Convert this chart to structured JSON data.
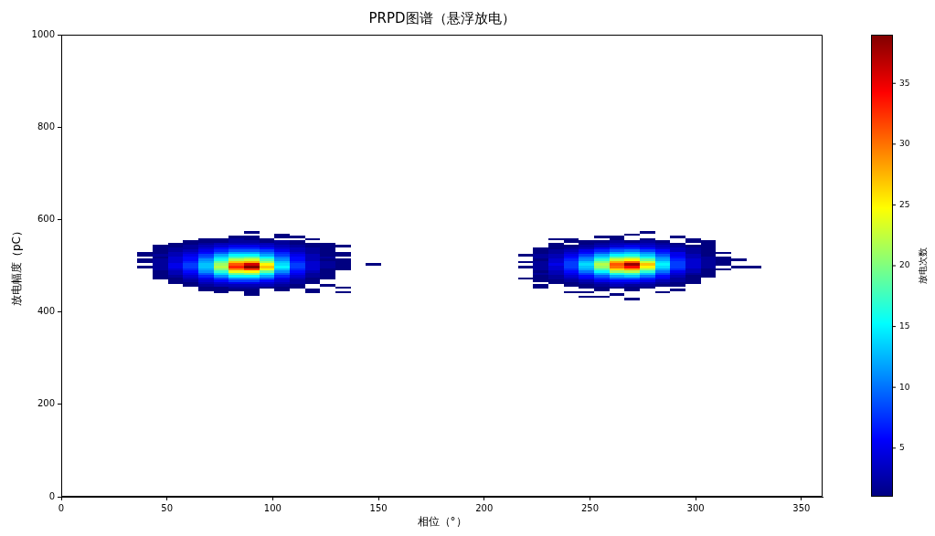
{
  "chart_data": {
    "type": "heatmap",
    "title": "PRPD图谱（悬浮放电）",
    "xlabel": "相位（°）",
    "ylabel": "放电幅度（pC）",
    "clabel": "放电次数",
    "xlim": [
      0,
      360
    ],
    "xticks": [
      0,
      50,
      100,
      150,
      200,
      250,
      300,
      350
    ],
    "ylim": [
      0,
      1000
    ],
    "yticks": [
      0,
      200,
      400,
      600,
      800,
      1000
    ],
    "clim": [
      1,
      39
    ],
    "cticks": [
      5,
      10,
      15,
      20,
      25,
      30,
      35
    ],
    "grid": false,
    "x": [
      39.6,
      46.8,
      54,
      61.2,
      68.4,
      75.6,
      82.8,
      90,
      97.2,
      104.4,
      111.6,
      118.8,
      126,
      133.2,
      140.4,
      147.6,
      154.8,
      162,
      169.2,
      176.4,
      183.6,
      190.8,
      198,
      205.2,
      212.4,
      219.6,
      226.8,
      234,
      241.2,
      248.4,
      255.6,
      262.8,
      270,
      277.2,
      284.4,
      291.6,
      298.8,
      306,
      313.2,
      320.4,
      327.6
    ],
    "cells": [
      null,
      null,
      null,
      null,
      null,
      null,
      null,
      null,
      null,
      null,
      null,
      null,
      null,
      null,
      null,
      null,
      null,
      null,
      null,
      null,
      null,
      null,
      null,
      null,
      null,
      null,
      null,
      null,
      null,
      null,
      null,
      null,
      null,
      null,
      null,
      null,
      null,
      null,
      null,
      null,
      null,
      null,
      null,
      null,
      null,
      null,
      null,
      null,
      null,
      null,
      null,
      null,
      null,
      null,
      null,
      null,
      null,
      null,
      null,
      null,
      null,
      null,
      null,
      null,
      null,
      null,
      null,
      null,
      null,
      null,
      null,
      null,
      null,
      null,
      null,
      null,
      null,
      null,
      null,
      null,
      null,
      null,
      null,
      null,
      null,
      [
        null,
        null,
        null,
        null,
        null,
        null,
        null,
        1,
        null,
        null,
        null,
        null,
        null,
        null,
        null,
        null,
        null,
        null,
        null,
        null,
        null,
        null,
        null,
        null,
        null,
        null,
        null,
        null,
        null,
        null,
        null,
        null,
        null,
        1,
        null,
        null,
        null,
        null,
        null,
        null,
        null
      ],
      [
        null,
        null,
        null,
        null,
        null,
        null,
        null,
        null,
        null,
        1,
        null,
        null,
        null,
        null,
        null,
        null,
        null,
        null,
        null,
        null,
        null,
        null,
        null,
        null,
        null,
        null,
        null,
        null,
        null,
        null,
        null,
        null,
        1,
        null,
        null,
        null,
        null,
        null,
        null,
        null,
        null
      ],
      [
        null,
        null,
        null,
        null,
        null,
        null,
        1,
        1,
        null,
        1,
        1,
        null,
        null,
        null,
        null,
        null,
        null,
        null,
        null,
        null,
        null,
        null,
        null,
        null,
        null,
        null,
        null,
        null,
        null,
        null,
        1,
        1,
        null,
        null,
        null,
        1,
        null,
        null,
        null,
        null,
        null
      ],
      [
        null,
        null,
        null,
        null,
        1,
        1,
        2,
        1,
        1,
        null,
        null,
        1,
        null,
        null,
        null,
        null,
        null,
        null,
        null,
        null,
        null,
        null,
        null,
        null,
        null,
        null,
        null,
        1,
        1,
        null,
        null,
        1,
        null,
        1,
        null,
        null,
        1,
        null,
        null,
        null,
        null
      ],
      [
        null,
        null,
        null,
        1,
        1,
        1,
        2,
        2,
        1,
        2,
        1,
        null,
        null,
        null,
        null,
        null,
        null,
        null,
        null,
        null,
        null,
        null,
        null,
        null,
        null,
        null,
        null,
        null,
        1,
        1,
        1,
        2,
        1,
        2,
        1,
        null,
        1,
        1,
        null,
        null,
        null
      ],
      [
        null,
        null,
        1,
        1,
        2,
        3,
        3,
        3,
        3,
        2,
        1,
        1,
        1,
        null,
        null,
        null,
        null,
        null,
        null,
        null,
        null,
        null,
        null,
        null,
        null,
        null,
        null,
        1,
        null,
        1,
        2,
        3,
        3,
        3,
        2,
        1,
        null,
        1,
        null,
        null,
        null
      ],
      [
        null,
        1,
        1,
        2,
        3,
        4,
        5,
        5,
        4,
        3,
        2,
        1,
        1,
        1,
        null,
        null,
        null,
        null,
        null,
        null,
        null,
        null,
        null,
        null,
        null,
        null,
        null,
        1,
        1,
        2,
        3,
        4,
        5,
        4,
        3,
        2,
        1,
        1,
        null,
        null,
        null
      ],
      [
        null,
        1,
        2,
        2,
        4,
        6,
        7,
        7,
        6,
        4,
        3,
        2,
        1,
        null,
        null,
        null,
        null,
        null,
        null,
        null,
        null,
        null,
        null,
        null,
        null,
        null,
        1,
        1,
        2,
        3,
        5,
        7,
        7,
        6,
        4,
        3,
        2,
        1,
        null,
        null,
        null
      ],
      [
        null,
        1,
        2,
        3,
        5,
        7,
        9,
        9,
        8,
        5,
        3,
        2,
        1,
        null,
        null,
        null,
        null,
        null,
        null,
        null,
        null,
        null,
        null,
        null,
        null,
        null,
        1,
        2,
        3,
        5,
        7,
        9,
        10,
        8,
        6,
        3,
        2,
        1,
        null,
        null,
        null
      ],
      [
        1,
        1,
        3,
        4,
        6,
        9,
        12,
        12,
        10,
        7,
        4,
        2,
        1,
        1,
        null,
        null,
        null,
        null,
        null,
        null,
        null,
        null,
        null,
        null,
        null,
        null,
        1,
        2,
        4,
        6,
        9,
        12,
        13,
        11,
        7,
        5,
        2,
        1,
        1,
        null,
        null
      ],
      [
        1,
        2,
        3,
        5,
        8,
        12,
        15,
        15,
        12,
        8,
        5,
        3,
        1,
        1,
        null,
        null,
        null,
        null,
        null,
        null,
        null,
        null,
        null,
        null,
        null,
        1,
        2,
        3,
        5,
        8,
        12,
        15,
        16,
        13,
        9,
        5,
        3,
        1,
        null,
        null,
        null
      ],
      [
        null,
        1,
        4,
        6,
        9,
        14,
        18,
        19,
        15,
        10,
        6,
        3,
        2,
        null,
        null,
        null,
        null,
        null,
        null,
        null,
        null,
        null,
        null,
        null,
        null,
        null,
        2,
        3,
        6,
        10,
        14,
        19,
        20,
        16,
        11,
        6,
        3,
        2,
        1,
        null,
        null
      ],
      [
        1,
        2,
        4,
        6,
        11,
        16,
        22,
        23,
        18,
        11,
        6,
        3,
        1,
        1,
        null,
        null,
        null,
        null,
        null,
        null,
        null,
        null,
        null,
        null,
        null,
        null,
        1,
        4,
        7,
        11,
        17,
        23,
        25,
        19,
        12,
        7,
        4,
        2,
        1,
        1,
        null
      ],
      [
        1,
        2,
        4,
        7,
        12,
        19,
        27,
        28,
        21,
        13,
        7,
        4,
        2,
        1,
        null,
        null,
        null,
        null,
        null,
        null,
        null,
        null,
        null,
        null,
        null,
        1,
        2,
        4,
        8,
        13,
        20,
        28,
        31,
        23,
        14,
        8,
        4,
        2,
        1,
        null,
        null
      ],
      [
        null,
        2,
        5,
        8,
        13,
        21,
        31,
        36,
        25,
        14,
        8,
        4,
        2,
        1,
        null,
        1,
        null,
        null,
        null,
        null,
        null,
        null,
        null,
        null,
        null,
        null,
        2,
        5,
        8,
        14,
        22,
        31,
        38,
        27,
        15,
        8,
        4,
        2,
        1,
        null,
        null
      ],
      [
        1,
        2,
        5,
        8,
        13,
        22,
        33,
        39,
        27,
        15,
        8,
        4,
        2,
        1,
        null,
        null,
        null,
        null,
        null,
        null,
        null,
        null,
        null,
        null,
        null,
        1,
        2,
        4,
        8,
        13,
        21,
        30,
        34,
        25,
        14,
        8,
        4,
        2,
        null,
        1,
        1
      ],
      [
        null,
        2,
        4,
        7,
        12,
        20,
        29,
        32,
        24,
        13,
        7,
        4,
        1,
        1,
        null,
        null,
        null,
        null,
        null,
        null,
        null,
        null,
        null,
        null,
        null,
        null,
        2,
        4,
        7,
        12,
        18,
        26,
        28,
        21,
        12,
        7,
        3,
        1,
        1,
        null,
        null
      ],
      [
        null,
        1,
        3,
        6,
        11,
        17,
        24,
        25,
        19,
        11,
        6,
        3,
        1,
        null,
        null,
        null,
        null,
        null,
        null,
        null,
        null,
        null,
        null,
        null,
        null,
        null,
        1,
        3,
        6,
        10,
        15,
        21,
        22,
        17,
        10,
        5,
        3,
        1,
        null,
        null,
        null
      ],
      [
        null,
        1,
        3,
        5,
        9,
        14,
        19,
        20,
        15,
        9,
        5,
        2,
        1,
        null,
        null,
        null,
        null,
        null,
        null,
        null,
        null,
        null,
        null,
        null,
        null,
        null,
        2,
        3,
        5,
        8,
        12,
        16,
        17,
        13,
        8,
        4,
        2,
        1,
        null,
        null,
        null
      ],
      [
        null,
        1,
        2,
        4,
        7,
        11,
        15,
        15,
        12,
        7,
        4,
        2,
        1,
        null,
        null,
        null,
        null,
        null,
        null,
        null,
        null,
        null,
        null,
        null,
        null,
        null,
        1,
        2,
        4,
        6,
        9,
        12,
        13,
        10,
        6,
        3,
        1,
        1,
        null,
        null,
        null
      ],
      [
        null,
        1,
        1,
        3,
        5,
        8,
        11,
        11,
        9,
        5,
        3,
        1,
        1,
        null,
        null,
        null,
        null,
        null,
        null,
        null,
        null,
        null,
        null,
        null,
        null,
        1,
        1,
        2,
        3,
        5,
        7,
        9,
        9,
        7,
        5,
        2,
        1,
        null,
        null,
        null,
        null
      ],
      [
        null,
        null,
        1,
        2,
        4,
        6,
        8,
        8,
        6,
        4,
        2,
        1,
        null,
        null,
        null,
        null,
        null,
        null,
        null,
        null,
        null,
        null,
        null,
        null,
        null,
        null,
        1,
        1,
        2,
        3,
        5,
        6,
        6,
        5,
        3,
        2,
        1,
        null,
        null,
        null,
        null
      ],
      [
        null,
        null,
        1,
        1,
        3,
        4,
        5,
        5,
        4,
        3,
        2,
        1,
        null,
        null,
        null,
        null,
        null,
        null,
        null,
        null,
        null,
        null,
        null,
        null,
        null,
        null,
        null,
        1,
        1,
        2,
        3,
        4,
        4,
        3,
        2,
        1,
        1,
        null,
        null,
        null,
        null
      ],
      [
        null,
        null,
        null,
        1,
        2,
        3,
        3,
        3,
        3,
        2,
        1,
        null,
        1,
        null,
        null,
        null,
        null,
        null,
        null,
        null,
        null,
        null,
        null,
        null,
        null,
        null,
        1,
        null,
        1,
        1,
        2,
        3,
        2,
        2,
        1,
        1,
        null,
        null,
        null,
        null,
        null
      ],
      [
        null,
        null,
        null,
        null,
        1,
        1,
        2,
        2,
        1,
        1,
        1,
        null,
        null,
        1,
        null,
        null,
        null,
        null,
        null,
        null,
        null,
        null,
        null,
        null,
        null,
        null,
        1,
        null,
        null,
        1,
        1,
        1,
        1,
        1,
        null,
        null,
        null,
        null,
        null,
        null,
        null
      ],
      [
        null,
        null,
        null,
        null,
        1,
        1,
        1,
        1,
        null,
        1,
        null,
        1,
        null,
        null,
        null,
        null,
        null,
        null,
        null,
        null,
        null,
        null,
        null,
        null,
        null,
        null,
        null,
        null,
        null,
        null,
        1,
        null,
        1,
        null,
        null,
        1,
        null,
        null,
        null,
        null,
        null
      ],
      [
        null,
        null,
        null,
        null,
        null,
        1,
        null,
        1,
        null,
        null,
        null,
        1,
        null,
        1,
        null,
        null,
        null,
        null,
        null,
        null,
        null,
        null,
        null,
        null,
        null,
        null,
        null,
        null,
        1,
        1,
        null,
        null,
        null,
        null,
        1,
        null,
        null,
        null,
        null,
        null,
        null
      ],
      [
        null,
        null,
        null,
        null,
        null,
        null,
        null,
        1,
        null,
        null,
        null,
        null,
        null,
        null,
        null,
        null,
        null,
        null,
        null,
        null,
        null,
        null,
        null,
        null,
        null,
        null,
        null,
        null,
        null,
        null,
        null,
        1,
        null,
        null,
        null,
        null,
        null,
        null,
        null,
        null,
        null
      ],
      [
        null,
        null,
        null,
        null,
        null,
        null,
        null,
        null,
        null,
        null,
        null,
        null,
        null,
        null,
        null,
        null,
        null,
        null,
        null,
        null,
        null,
        null,
        null,
        null,
        null,
        null,
        null,
        null,
        null,
        1,
        1,
        null,
        null,
        null,
        null,
        null,
        null,
        null,
        null,
        null,
        null
      ],
      [
        null,
        null,
        null,
        null,
        null,
        null,
        null,
        null,
        null,
        null,
        null,
        null,
        null,
        null,
        null,
        null,
        null,
        null,
        null,
        null,
        null,
        null,
        null,
        null,
        null,
        null,
        null,
        null,
        null,
        null,
        null,
        null,
        1,
        null,
        null,
        null,
        null,
        null,
        null,
        null,
        null
      ],
      null,
      null,
      null,
      null,
      null,
      null,
      null,
      null,
      null,
      null,
      null,
      null,
      null,
      null,
      null,
      null,
      null,
      null,
      null,
      null,
      null,
      null,
      null,
      null,
      null,
      null,
      null,
      null,
      null,
      null,
      null,
      null,
      null,
      null,
      null,
      null,
      null,
      null,
      null,
      null,
      null,
      null,
      null,
      null,
      null,
      null,
      null,
      null,
      null,
      null,
      null,
      null,
      null,
      null,
      null,
      null,
      null,
      null,
      null,
      null,
      null,
      null,
      null,
      null,
      null,
      null,
      null,
      null,
      null,
      null,
      null,
      null,
      null,
      null,
      null,
      null,
      null,
      null,
      null,
      null,
      null,
      null,
      null,
      null,
      null
    ]
  }
}
